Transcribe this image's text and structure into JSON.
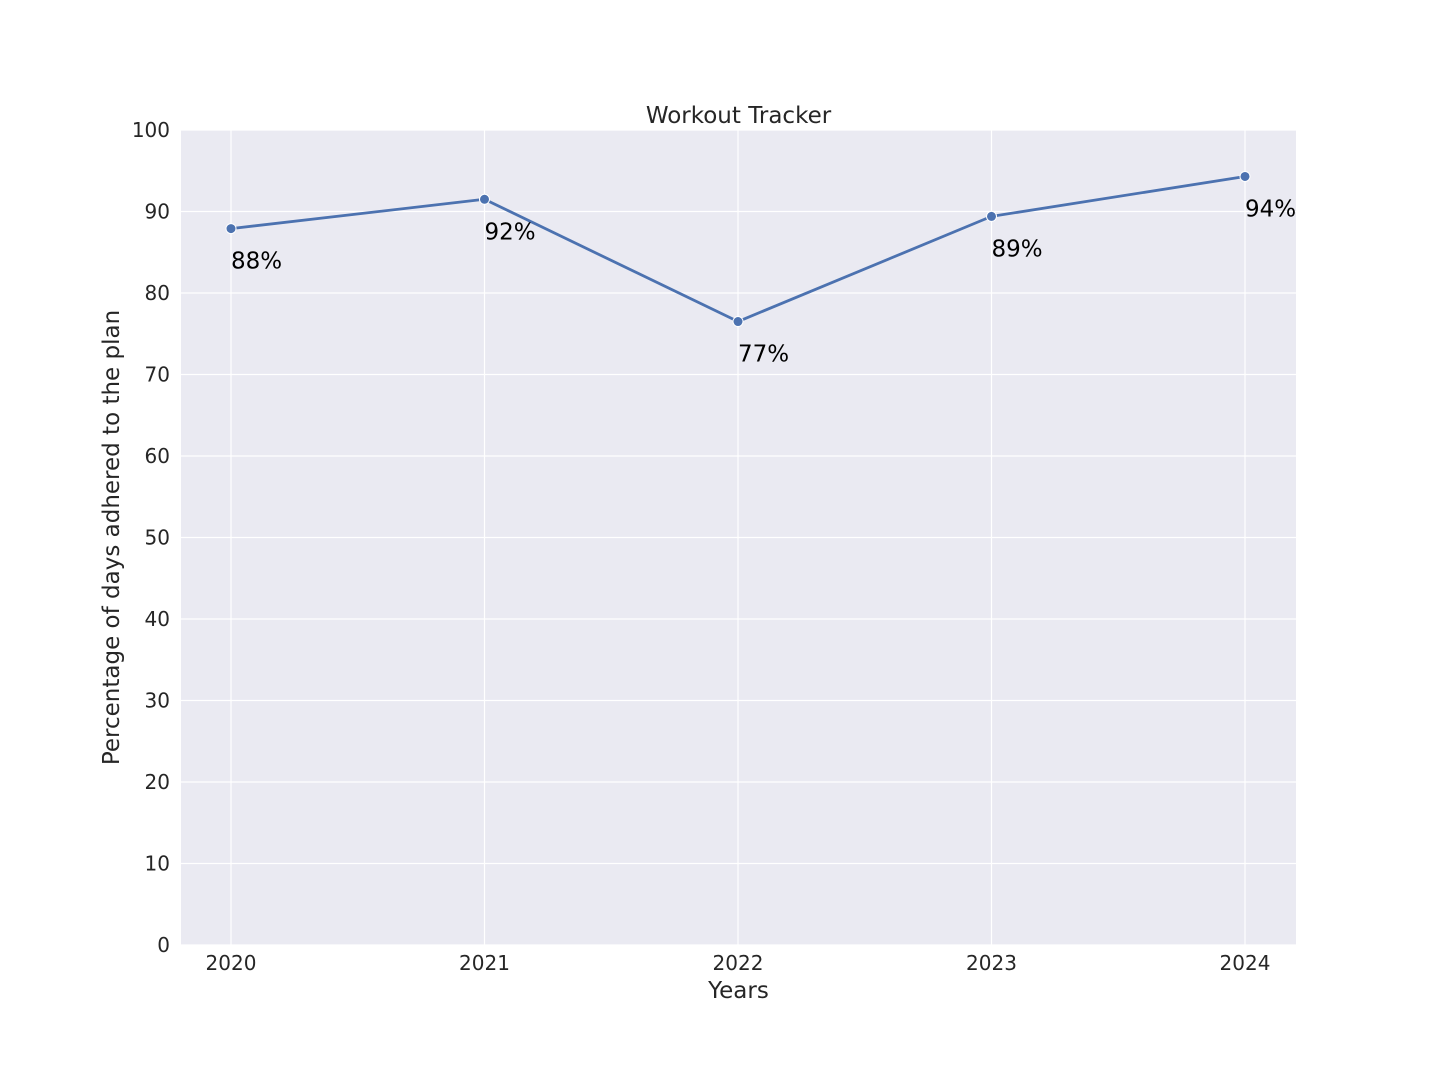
{
  "chart_data": {
    "type": "line",
    "title": "Workout Tracker",
    "xlabel": "Years",
    "ylabel": "Percentage of days adhered to the plan",
    "x": [
      "2020",
      "2021",
      "2022",
      "2023",
      "2024"
    ],
    "series": [
      {
        "values": [
          87.9,
          91.5,
          76.5,
          89.4,
          94.3
        ],
        "labels": [
          "88%",
          "92%",
          "77%",
          "89%",
          "94%"
        ]
      }
    ],
    "ylim": [
      0,
      100
    ],
    "yticks": [
      "0",
      "10",
      "20",
      "30",
      "40",
      "50",
      "60",
      "70",
      "80",
      "90",
      "100"
    ],
    "grid": true,
    "colors": {
      "background": "#eaeaf2",
      "line": "#4c72b0",
      "grid": "#ffffff"
    }
  }
}
